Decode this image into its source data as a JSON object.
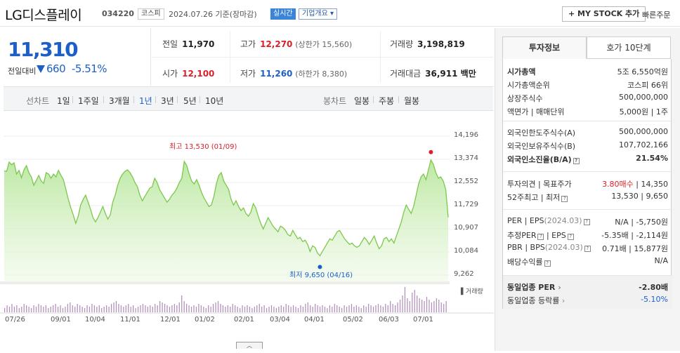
{
  "header": {
    "name": "LG디스플레이",
    "code": "034220",
    "market_badge": "코스피",
    "date": "2024.07.26",
    "date_basis": "기준(장마감)",
    "live_badge": "실시간",
    "company_badge": "기업개요 ▾",
    "my_stock_button": "+ MY STOCK 추가",
    "quick_order": "빠른주문"
  },
  "quote": {
    "price": "11,310",
    "change_label": "전일대비",
    "change": "660",
    "change_pct": "-5.51%"
  },
  "stats": {
    "prev_close_label": "전일",
    "prev_close": "11,970",
    "high_label": "고가",
    "high": "12,270",
    "upper_limit": "(상한가 15,560)",
    "volume_label": "거래량",
    "volume": "3,198,819",
    "open_label": "시가",
    "open": "12,100",
    "low_label": "저가",
    "low": "11,260",
    "lower_limit": "(하한가 8,380)",
    "amount_label": "거래대금",
    "amount": "36,911 백만"
  },
  "tabs": {
    "line_chart": "선차트",
    "periods": [
      "1일",
      "1주일",
      "3개월",
      "1년",
      "3년",
      "5년",
      "10년"
    ],
    "selected_period": "1년",
    "candle_chart": "봉차트",
    "candle_periods": [
      "일봉",
      "주봉",
      "월봉"
    ]
  },
  "chart_data": {
    "type": "area",
    "title": "",
    "xlabel": "",
    "ylabel": "",
    "y_ticks": [
      "14,196",
      "13,374",
      "12,552",
      "11,729",
      "10,907",
      "10,084",
      "9,262"
    ],
    "ylim": [
      9262,
      14196
    ],
    "x_ticks": [
      "07/26",
      "09/01",
      "10/04",
      "11/01",
      "12/01",
      "01/02",
      "02/01",
      "03/04",
      "04/01",
      "05/02",
      "06/03",
      "07/01"
    ],
    "annotations": {
      "high": "최고 13,530 (01/09)",
      "low": "최저 9,650 (04/16)"
    },
    "volume_label": "▌거래량",
    "series": [
      {
        "values": [
          12960,
          12950,
          13280,
          13180,
          13250,
          12850,
          12980,
          12720,
          13000,
          13150,
          12900,
          12750,
          12450,
          12620,
          12800,
          12600,
          12520,
          12900,
          12850,
          12700,
          12850,
          12750,
          12980,
          12800,
          12650,
          12300,
          11950,
          11650,
          11400,
          11100,
          11350,
          11750,
          11950,
          12100,
          11850,
          11600,
          11300,
          11150,
          11300,
          11500,
          11700,
          11450,
          11250,
          11400,
          11850,
          12100,
          12450,
          12700,
          12850,
          12950,
          13000,
          12900,
          12750,
          12550,
          12400,
          12100,
          11900,
          12050,
          12200,
          12350,
          12400,
          12700,
          12550,
          12300,
          12150,
          12000,
          11850,
          11950,
          12100,
          12200,
          12350,
          12550,
          12700,
          13300,
          13150,
          12850,
          12600,
          12500,
          12650,
          12450,
          12200,
          12000,
          11850,
          11700,
          11750,
          12050,
          12500,
          12800,
          12900,
          12600,
          12450,
          12300,
          11950,
          11750,
          11900,
          11700,
          11550,
          11650,
          11450,
          11350,
          11500,
          11800,
          11650,
          11350,
          11100,
          10900,
          11100,
          11300,
          11150,
          11000,
          10900,
          10800,
          11000,
          10950,
          10850,
          10700,
          10650,
          10850,
          10700,
          10550,
          10600,
          10450,
          10500,
          10350,
          10100,
          10300,
          10250,
          10050,
          9950,
          10100,
          10250,
          10400,
          10550,
          10500,
          10650,
          10800,
          10850,
          10700,
          10550,
          10450,
          10350,
          10400,
          10300,
          10250,
          10300,
          10450,
          10600,
          10500,
          10350,
          10500,
          10650,
          10400,
          10200,
          10300,
          10550,
          10600,
          10450,
          10550,
          10400,
          10650,
          10900,
          11150,
          11500,
          11750,
          11600,
          11450,
          11700,
          12100,
          12500,
          12750,
          12850,
          12650,
          13000,
          13350,
          13200,
          12900,
          12700,
          12750,
          12600,
          12300,
          11310
        ]
      }
    ],
    "volume": [
      3,
      5,
      4,
      6,
      4,
      5,
      3,
      4,
      6,
      5,
      4,
      3,
      5,
      4,
      6,
      5,
      4,
      5,
      3,
      4,
      5,
      6,
      4,
      5,
      3,
      4,
      6,
      7,
      5,
      4,
      6,
      5,
      4,
      3,
      5,
      4,
      6,
      5,
      4,
      5,
      3,
      4,
      5,
      4,
      6,
      7,
      8,
      6,
      5,
      4,
      5,
      6,
      4,
      5,
      3,
      4,
      5,
      6,
      5,
      4,
      5,
      4,
      6,
      5,
      8,
      7,
      6,
      5,
      4,
      5,
      6,
      5,
      7,
      12,
      8,
      6,
      5,
      4,
      5,
      4,
      6,
      5,
      4,
      3,
      5,
      4,
      6,
      7,
      8,
      6,
      5,
      4,
      5,
      4,
      6,
      5,
      4,
      3,
      5,
      4,
      5,
      4,
      3,
      4,
      5,
      6,
      4,
      5,
      3,
      4,
      5,
      4,
      3,
      4,
      5,
      4,
      6,
      5,
      4,
      5,
      4,
      3,
      5,
      4,
      6,
      7,
      5,
      4,
      6,
      5,
      4,
      5,
      4,
      3,
      5,
      4,
      6,
      5,
      4,
      3,
      5,
      4,
      5,
      6,
      4,
      5,
      4,
      3,
      5,
      4,
      6,
      5,
      4,
      5,
      6,
      5,
      4,
      6,
      5,
      8,
      6,
      5,
      7,
      9,
      12,
      18,
      10,
      8,
      14,
      16,
      12,
      10,
      9,
      8,
      11,
      9,
      7,
      8,
      10,
      9,
      7,
      6,
      8
    ]
  },
  "info_panel": {
    "tabs": [
      "투자정보",
      "호가 10단계"
    ],
    "rows1": [
      {
        "k": "시가총액",
        "v": "5조 6,550억원"
      },
      {
        "k": "시가총액순위",
        "v": "코스피 66위"
      },
      {
        "k": "상장주식수",
        "v": "500,000,000"
      },
      {
        "k": "액면가 | 매매단위",
        "v": "5,000원 | 1주"
      }
    ],
    "rows2": [
      {
        "k": "외국인한도주식수(A)",
        "v": "500,000,000"
      },
      {
        "k": "외국인보유주식수(B)",
        "v": "107,702,166"
      },
      {
        "k": "외국인소진율(B/A)",
        "v": "21.54%"
      }
    ],
    "rows3": [
      {
        "k": "투자의견 | 목표주가",
        "v1": "3.80매수",
        "v2": "| 14,350"
      },
      {
        "k": "52주최고 | 최저",
        "v": "13,530 | 9,650"
      }
    ],
    "rows4": [
      {
        "k1": "PER",
        "k2": "| EPS",
        "k3": "(2024.03)",
        "v": "N/A | -5,750원"
      },
      {
        "k1": "추정PER",
        "k2": "| EPS",
        "k3": "",
        "v": "-5.35배 | -2,114원"
      },
      {
        "k1": "PBR",
        "k2": "| BPS",
        "k3": "(2024.03)",
        "v": "0.71배 | 15,877원"
      },
      {
        "k1": "배당수익률",
        "k2": "",
        "k3": "",
        "v": "N/A"
      }
    ],
    "rows5": [
      {
        "k": "동일업종 PER",
        "v": "-2.80배"
      },
      {
        "k": "동일업종 등락률",
        "v": "-5.10%"
      }
    ]
  }
}
